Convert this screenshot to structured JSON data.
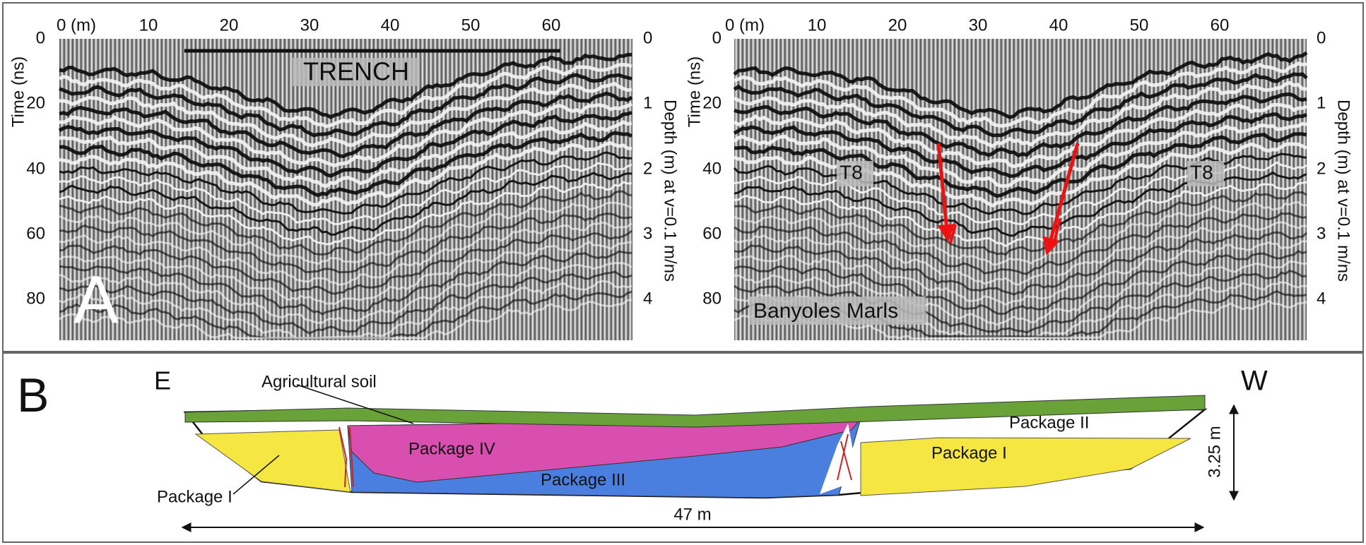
{
  "panels": [
    {
      "x_ticks": [
        "0 (m)",
        "10",
        "20",
        "30",
        "40",
        "50",
        "60"
      ],
      "time_title": "Time (ns)",
      "time_ticks": [
        "0",
        "20",
        "40",
        "60",
        "80"
      ],
      "depth_title": "Depth (m) at v=0.1 m/ns",
      "depth_ticks": [
        "0",
        "1",
        "2",
        "3",
        "4"
      ],
      "label": "A",
      "annotations": [
        "TRENCH"
      ]
    },
    {
      "x_ticks": [
        "0 (m)",
        "10",
        "20",
        "30",
        "40",
        "50",
        "60"
      ],
      "time_title": "Time (ns)",
      "time_ticks": [
        "0",
        "20",
        "40",
        "60",
        "80"
      ],
      "depth_title": "Depth (m) at v=0.1 m/ns",
      "depth_ticks": [
        "0",
        "1",
        "2",
        "3",
        "4"
      ],
      "annotations": [
        "T8",
        "T8",
        "Banyoles Marls"
      ]
    }
  ],
  "section": {
    "label": "B",
    "east": "E",
    "west": "W",
    "units": [
      "Agricultural soil",
      "Package IV",
      "Package III",
      "Package I",
      "Package I",
      "Package II"
    ],
    "height": "3.25 m",
    "length": "47 m"
  }
}
